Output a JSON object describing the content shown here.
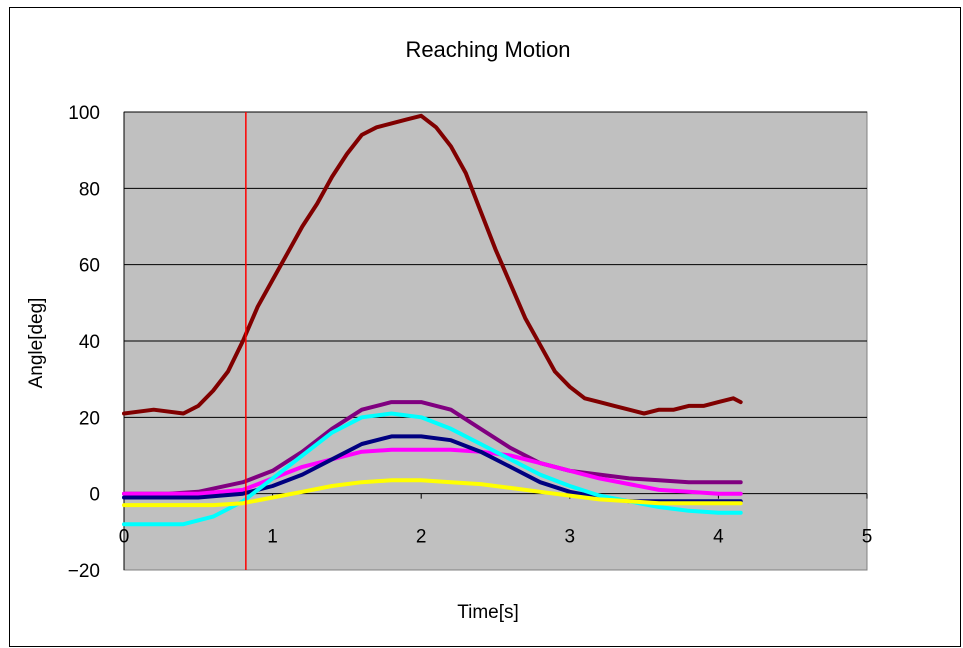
{
  "chart_data": {
    "type": "line",
    "title": "Reaching Motion",
    "xlabel": "Time[s]",
    "ylabel": "Angle[deg]",
    "xlim": [
      0,
      5
    ],
    "ylim": [
      -20,
      100
    ],
    "xticks": [
      "0",
      "1",
      "2",
      "3",
      "4",
      "5"
    ],
    "yticks": [
      "-20",
      "0",
      "20",
      "40",
      "60",
      "80",
      "100"
    ],
    "grid": "horizontal",
    "background": "#c0c0c0",
    "legend": "none",
    "marker_line": {
      "x": 0.82,
      "color": "#ff0000"
    },
    "series": [
      {
        "color": "#800000",
        "x": [
          0,
          0.2,
          0.4,
          0.5,
          0.6,
          0.7,
          0.8,
          0.9,
          1.0,
          1.1,
          1.2,
          1.3,
          1.4,
          1.5,
          1.6,
          1.7,
          1.8,
          1.9,
          2.0,
          2.1,
          2.2,
          2.3,
          2.4,
          2.5,
          2.6,
          2.7,
          2.8,
          2.9,
          3.0,
          3.1,
          3.2,
          3.3,
          3.4,
          3.5,
          3.6,
          3.7,
          3.8,
          3.9,
          4.0,
          4.1,
          4.15
        ],
        "y": [
          21,
          22,
          21,
          23,
          27,
          32,
          40,
          49,
          56,
          63,
          70,
          76,
          83,
          89,
          94,
          96,
          97,
          98,
          99,
          96,
          91,
          84,
          74,
          64,
          55,
          46,
          39,
          32,
          28,
          25,
          24,
          23,
          22,
          21,
          22,
          22,
          23,
          23,
          24,
          25,
          24
        ]
      },
      {
        "color": "#800080",
        "x": [
          0,
          0.3,
          0.5,
          0.8,
          1.0,
          1.2,
          1.4,
          1.6,
          1.8,
          2.0,
          2.2,
          2.4,
          2.6,
          2.8,
          3.0,
          3.2,
          3.4,
          3.6,
          3.8,
          4.0,
          4.15
        ],
        "y": [
          0,
          0,
          0.5,
          3,
          6,
          11,
          17,
          22,
          24,
          24,
          22,
          17,
          12,
          8,
          6,
          5,
          4,
          3.5,
          3,
          3,
          3
        ]
      },
      {
        "color": "#ff00ff",
        "x": [
          0,
          0.3,
          0.5,
          0.8,
          1.0,
          1.2,
          1.4,
          1.6,
          1.8,
          2.0,
          2.2,
          2.4,
          2.6,
          2.8,
          3.0,
          3.2,
          3.4,
          3.6,
          3.8,
          4.0,
          4.15
        ],
        "y": [
          0,
          0,
          0,
          1,
          4,
          7,
          9,
          11,
          11.5,
          11.5,
          11.5,
          11,
          10,
          8,
          6,
          4,
          2.5,
          1,
          0.5,
          0,
          0
        ]
      },
      {
        "color": "#000080",
        "x": [
          0,
          0.3,
          0.5,
          0.8,
          1.0,
          1.2,
          1.4,
          1.6,
          1.8,
          2.0,
          2.2,
          2.4,
          2.6,
          2.8,
          3.0,
          3.2,
          3.4,
          3.6,
          3.8,
          4.0,
          4.15
        ],
        "y": [
          -1,
          -1,
          -1,
          0,
          2,
          5,
          9,
          13,
          15,
          15,
          14,
          11,
          7,
          3,
          0.5,
          -1,
          -2,
          -2,
          -2,
          -2,
          -2
        ]
      },
      {
        "color": "#00ffff",
        "x": [
          0,
          0.2,
          0.4,
          0.6,
          0.8,
          1.0,
          1.2,
          1.4,
          1.6,
          1.8,
          2.0,
          2.2,
          2.4,
          2.6,
          2.8,
          3.0,
          3.2,
          3.4,
          3.6,
          3.8,
          4.0,
          4.15
        ],
        "y": [
          -8,
          -8,
          -8,
          -6,
          -2,
          4,
          10,
          16,
          20,
          21,
          20,
          17,
          13,
          9,
          5,
          2,
          -0.5,
          -2,
          -3.5,
          -4.5,
          -5,
          -5
        ]
      },
      {
        "color": "#ffff00",
        "x": [
          0,
          0.3,
          0.6,
          0.8,
          1.0,
          1.2,
          1.4,
          1.6,
          1.8,
          2.0,
          2.2,
          2.4,
          2.6,
          2.8,
          3.0,
          3.2,
          3.4,
          3.6,
          3.8,
          4.0,
          4.15
        ],
        "y": [
          -3,
          -3,
          -3,
          -2.5,
          -1,
          0.5,
          2,
          3,
          3.5,
          3.5,
          3,
          2.5,
          1.5,
          0.5,
          -0.5,
          -1.5,
          -2,
          -2.5,
          -2.5,
          -2.5,
          -2.5
        ]
      }
    ]
  }
}
